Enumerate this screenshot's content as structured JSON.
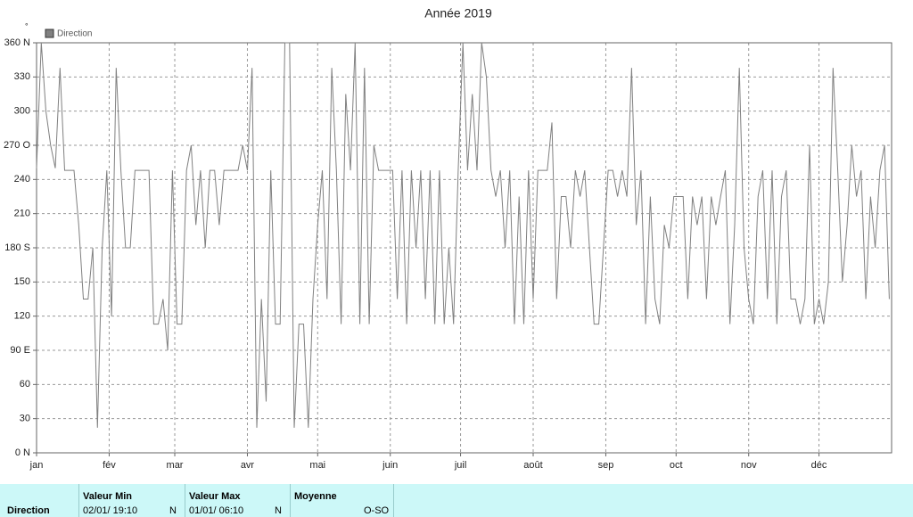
{
  "chart_data": {
    "type": "line",
    "title": "Année 2019",
    "unit": "°",
    "x": [
      0,
      2,
      4,
      6,
      8,
      10,
      12,
      14,
      16,
      18,
      20,
      22,
      24,
      26,
      28,
      30,
      32,
      34,
      36,
      38,
      40,
      42,
      44,
      46,
      48,
      50,
      52,
      54,
      56,
      58,
      60,
      62,
      64,
      66,
      68,
      70,
      72,
      74,
      76,
      78,
      80,
      82,
      84,
      86,
      88,
      90,
      92,
      94,
      96,
      98,
      100,
      102,
      104,
      106,
      108,
      110,
      112,
      114,
      116,
      118,
      120,
      122,
      124,
      126,
      128,
      130,
      132,
      134,
      136,
      138,
      140,
      142,
      144,
      146,
      148,
      150,
      152,
      154,
      156,
      158,
      160,
      162,
      164,
      166,
      168,
      170,
      172,
      174,
      176,
      178,
      180,
      182,
      184,
      186,
      188,
      190,
      192,
      194,
      196,
      198,
      200,
      202,
      204,
      206,
      208,
      210,
      212,
      214,
      216,
      218,
      220,
      222,
      224,
      226,
      228,
      230,
      232,
      234,
      236,
      238,
      240,
      242,
      244,
      246,
      248,
      250,
      252,
      254,
      256,
      258,
      260,
      262,
      264,
      266,
      268,
      270,
      272,
      274,
      276,
      278,
      280,
      282,
      284,
      286,
      288,
      290,
      292,
      294,
      296,
      298,
      300,
      302,
      304,
      306,
      308,
      310,
      312,
      314,
      316,
      318,
      320,
      322,
      324,
      326,
      328,
      330,
      332,
      334,
      336,
      338,
      340,
      342,
      344,
      346,
      348,
      350,
      352,
      354,
      356,
      358,
      360,
      362,
      364
    ],
    "series": [
      {
        "name": "Direction",
        "color": "#808080",
        "values": [
          250,
          360,
          300,
          270,
          250,
          338,
          248,
          248,
          248,
          200,
          135,
          135,
          180,
          22,
          180,
          248,
          120,
          338,
          248,
          180,
          180,
          248,
          248,
          248,
          248,
          113,
          113,
          135,
          90,
          248,
          113,
          113,
          248,
          270,
          200,
          248,
          180,
          248,
          248,
          200,
          248,
          248,
          248,
          248,
          270,
          248,
          338,
          22,
          135,
          45,
          248,
          113,
          113,
          360,
          360,
          22,
          113,
          113,
          22,
          135,
          200,
          248,
          135,
          338,
          248,
          113,
          315,
          248,
          360,
          113,
          338,
          113,
          270,
          248,
          248,
          248,
          248,
          135,
          248,
          113,
          248,
          180,
          248,
          135,
          248,
          113,
          248,
          113,
          180,
          113,
          248,
          360,
          248,
          315,
          248,
          360,
          330,
          248,
          225,
          248,
          180,
          248,
          113,
          225,
          113,
          248,
          135,
          248,
          248,
          248,
          290,
          135,
          225,
          225,
          180,
          248,
          225,
          248,
          180,
          113,
          113,
          180,
          248,
          248,
          225,
          248,
          225,
          338,
          200,
          248,
          113,
          225,
          135,
          113,
          200,
          180,
          225,
          225,
          225,
          135,
          225,
          200,
          225,
          135,
          225,
          200,
          225,
          248,
          113,
          200,
          338,
          180,
          135,
          113,
          225,
          248,
          135,
          248,
          113,
          225,
          248,
          135,
          135,
          113,
          135,
          270,
          113,
          135,
          113,
          150,
          338,
          248,
          150,
          200,
          270,
          225,
          248,
          135,
          225,
          180,
          248,
          270,
          135
        ]
      }
    ],
    "xlim": [
      0,
      365
    ],
    "xticks": [
      {
        "value": 0,
        "label": "jan"
      },
      {
        "value": 31,
        "label": "fév"
      },
      {
        "value": 59,
        "label": "mar"
      },
      {
        "value": 90,
        "label": "avr"
      },
      {
        "value": 120,
        "label": "mai"
      },
      {
        "value": 151,
        "label": "juin"
      },
      {
        "value": 181,
        "label": "juil"
      },
      {
        "value": 212,
        "label": "août"
      },
      {
        "value": 243,
        "label": "sep"
      },
      {
        "value": 273,
        "label": "oct"
      },
      {
        "value": 304,
        "label": "nov"
      },
      {
        "value": 334,
        "label": "déc"
      }
    ],
    "ylim": [
      0,
      360
    ],
    "yticks": [
      {
        "value": 0,
        "label": "0 N"
      },
      30,
      60,
      {
        "value": 90,
        "label": "90 E"
      },
      120,
      150,
      {
        "value": 180,
        "label": "180 S"
      },
      210,
      240,
      {
        "value": 270,
        "label": "270 O"
      },
      300,
      330,
      {
        "value": 360,
        "label": "360 N"
      }
    ],
    "grid": true,
    "legend": "top-left"
  },
  "table": {
    "headers": [
      "Valeur Min",
      "Valeur Max",
      "Moyenne"
    ],
    "rows": [
      [
        "Direction",
        "02/01/ 19:10",
        "N",
        "01/01/ 06:10",
        "N",
        "O-SO"
      ]
    ]
  }
}
